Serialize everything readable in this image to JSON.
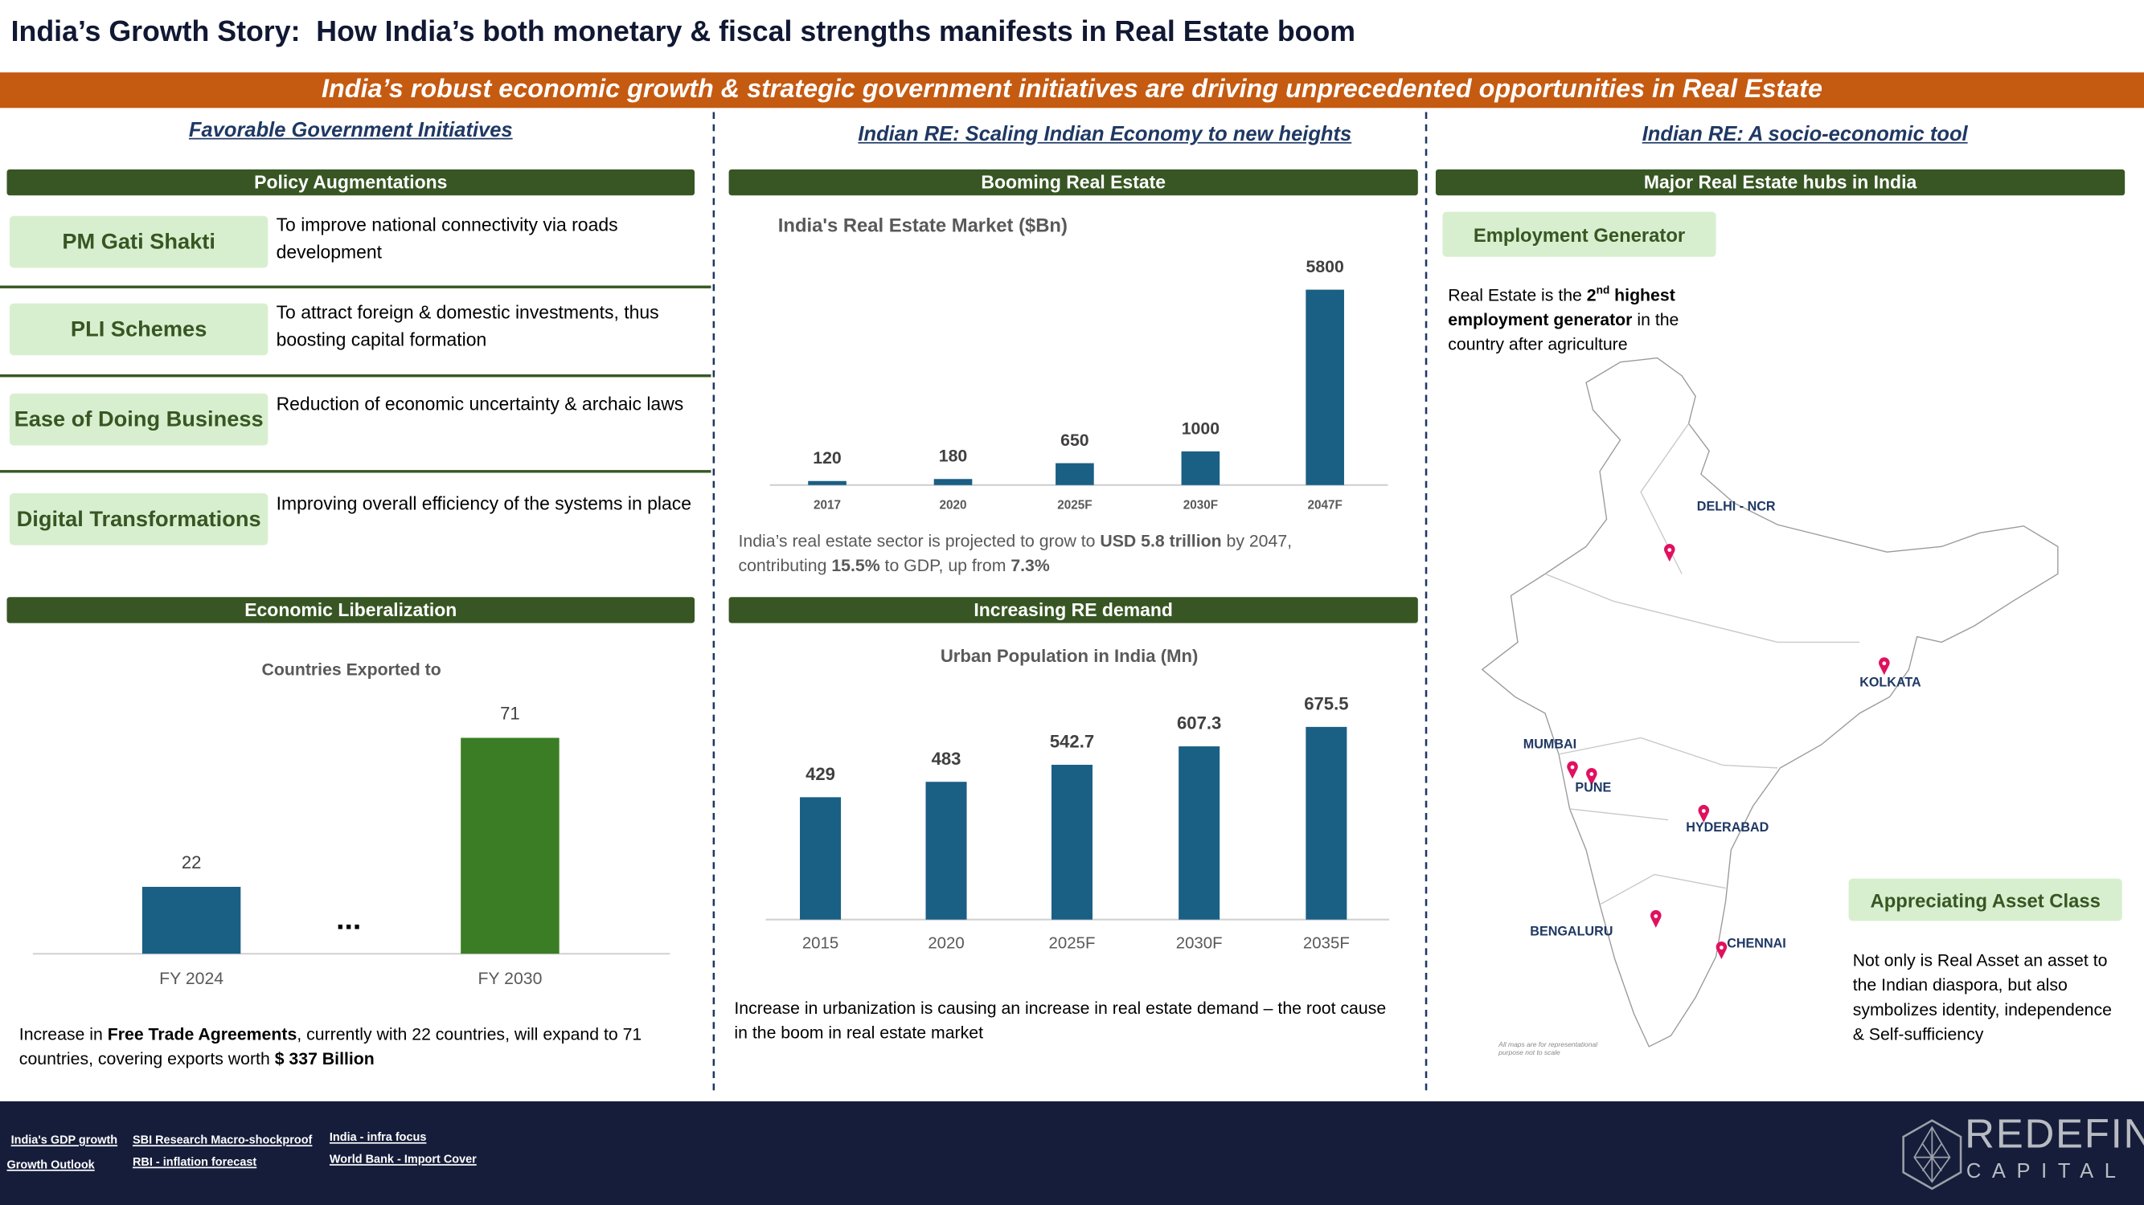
{
  "header": {
    "title": "India’s Growth Story:  How India’s both monetary & fiscal strengths manifests in Real Estate boom",
    "banner": "India’s robust economic growth & strategic government initiatives are driving unprecedented opportunities in Real Estate"
  },
  "left": {
    "heading": "Favorable Government Initiatives",
    "section1": "Policy Augmentations",
    "policies": [
      {
        "name": "PM Gati Shakti",
        "description": "To improve national connectivity via roads development"
      },
      {
        "name": "PLI Schemes",
        "description": "To attract foreign & domestic investments, thus boosting capital formation"
      },
      {
        "name": "Ease of Doing Business",
        "description": "Reduction of economic uncertainty & archaic laws"
      },
      {
        "name": "Digital Transformations",
        "description": "Improving overall efficiency of the systems in place"
      }
    ],
    "section2": "Economic Liberalization",
    "note": [
      "Increase in ",
      "Free Trade Agreements",
      ", currently with 22 countries, will expand to 71 countries, covering exports worth ",
      "$ 337 Billion"
    ]
  },
  "middle": {
    "heading": "Indian RE: Scaling Indian Economy to new heights",
    "section1": "Booming Real Estate",
    "note1": [
      "India’s real estate sector is projected to grow to ",
      "USD 5.8 trillion",
      " by 2047, contributing ",
      "15.5%",
      " to GDP, up from ",
      "7.3%"
    ],
    "section2": "Increasing RE demand",
    "note2": "Increase in urbanization is causing an increase in real estate demand – the root cause in the boom in real estate market"
  },
  "right": {
    "heading": "Indian RE: A socio-economic tool",
    "section1": "Major Real Estate hubs in India",
    "employment": {
      "label": "Employment Generator",
      "text": [
        "Real Estate is the ",
        "2",
        "nd",
        " highest employment generator",
        " in the country after agriculture"
      ]
    },
    "cities": [
      "DELHI - NCR",
      "KOLKATA",
      "MUMBAI",
      "PUNE",
      "HYDERABAD",
      "BENGALURU",
      "CHENNAI"
    ],
    "disclaimer": "All maps are for representational purpose not to scale",
    "asset": {
      "label": "Appreciating Asset Class",
      "text": "Not only is Real Asset an asset to the Indian diaspora, but also symbolizes identity, independence & Self-sufficiency"
    }
  },
  "footer": {
    "links": [
      "India's GDP growth",
      "SBI Research Macro-shockproof",
      "India - infra focus",
      "Growth Outlook",
      "RBI - inflation forecast",
      "World Bank - Import Cover"
    ],
    "logo": {
      "name": "REDEFIN",
      "tagline": "CAPITAL"
    }
  },
  "chart_data": [
    {
      "type": "bar",
      "title": "India's Real Estate Market ($Bn)",
      "categories": [
        "2017",
        "2020",
        "2025F",
        "2030F",
        "2047F"
      ],
      "values": [
        120,
        180,
        650,
        1000,
        5800
      ],
      "color": "#1a5f84"
    },
    {
      "type": "bar",
      "title": "Countries Exported to",
      "categories": [
        "FY 2024",
        "FY 2030"
      ],
      "values": [
        22,
        71
      ],
      "colors": [
        "#1a5f84",
        "#3a7d24"
      ],
      "separator": "..."
    },
    {
      "type": "bar",
      "title": "Urban Population in India (Mn)",
      "categories": [
        "2015",
        "2020",
        "2025F",
        "2030F",
        "2035F"
      ],
      "values": [
        429,
        483,
        542.7,
        607.3,
        675.5
      ],
      "color": "#1a5f84"
    }
  ]
}
